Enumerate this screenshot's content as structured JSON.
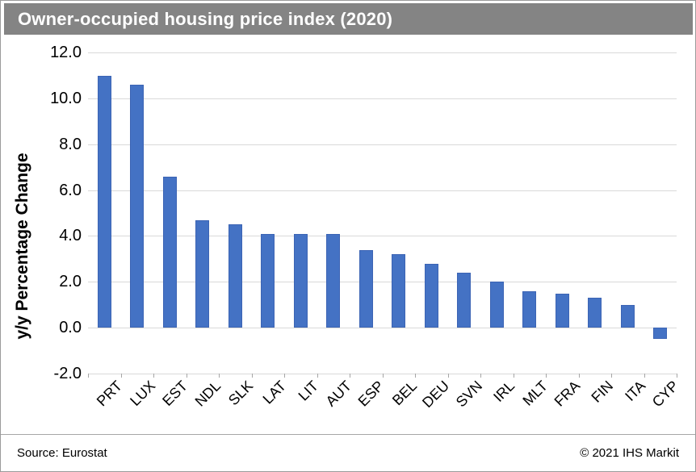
{
  "title": "Owner-occupied housing price index (2020)",
  "footer": {
    "source": "Source: Eurostat",
    "copyright": "© 2021 IHS Markit"
  },
  "colors": {
    "bar_fill": "#4472C4",
    "bar_border": "#3C64B4",
    "title_bar_background": "#848484",
    "title_text": "#FFFFFF",
    "gridline": "#D9D9D9",
    "axis_tick": "#A6A6A6",
    "label_text": "#000000"
  },
  "chart_data": {
    "type": "bar",
    "title": "Owner-occupied housing price index (2020)",
    "xlabel": "",
    "ylabel": "y/y Percentage Change",
    "categories": [
      "PRT",
      "LUX",
      "EST",
      "NDL",
      "SLK",
      "LAT",
      "LIT",
      "AUT",
      "ESP",
      "BEL",
      "DEU",
      "SVN",
      "IRL",
      "MLT",
      "FRA",
      "FIN",
      "ITA",
      "CYP"
    ],
    "values": [
      11.0,
      10.6,
      6.6,
      4.7,
      4.5,
      4.1,
      4.1,
      4.1,
      3.4,
      3.2,
      2.8,
      2.4,
      2.0,
      1.6,
      1.5,
      1.3,
      1.0,
      -0.5
    ],
    "ylim": [
      -2.0,
      12.0
    ],
    "yticks": [
      12,
      10,
      8,
      6,
      4,
      2,
      0,
      -2
    ],
    "grid": true,
    "legend": false,
    "source": "Source: Eurostat",
    "copyright": "© 2021 IHS Markit"
  }
}
